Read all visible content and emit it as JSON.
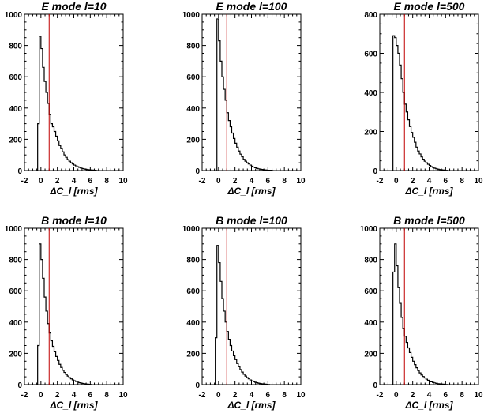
{
  "chart_data": [
    {
      "type": "histogram",
      "title": "E mode  l=10",
      "xlabel": "ΔC_l [rms]",
      "xlim": [
        -2,
        10
      ],
      "ylim": [
        0,
        1000
      ],
      "xticks": [
        "-2",
        "0",
        "2",
        "4",
        "6",
        "8",
        "10"
      ],
      "yticks": [
        "0",
        "200",
        "400",
        "600",
        "800",
        "1000"
      ],
      "marker_x": 1,
      "bin_width": 0.2,
      "bins_start": -0.4,
      "counts": [
        300,
        860,
        780,
        660,
        570,
        500,
        430,
        360,
        300,
        280,
        250,
        220,
        190,
        160,
        140,
        120,
        100,
        85,
        70,
        60,
        50,
        42,
        35,
        30,
        25,
        20,
        16,
        13,
        10,
        8,
        6,
        5,
        4,
        3,
        2,
        1
      ]
    },
    {
      "type": "histogram",
      "title": "E mode  l=100",
      "xlabel": "ΔC_l [rms]",
      "xlim": [
        -2,
        10
      ],
      "ylim": [
        0,
        1000
      ],
      "xticks": [
        "-2",
        "0",
        "2",
        "4",
        "6",
        "8",
        "10"
      ],
      "yticks": [
        "0",
        "200",
        "400",
        "600",
        "800",
        "1000"
      ],
      "marker_x": 1,
      "bin_width": 0.2,
      "bins_start": -0.2,
      "counts": [
        970,
        830,
        700,
        600,
        520,
        450,
        370,
        320,
        280,
        240,
        205,
        175,
        150,
        125,
        105,
        88,
        72,
        60,
        50,
        42,
        35,
        28,
        22,
        18,
        14,
        11,
        9,
        7,
        5,
        4,
        3,
        2,
        2,
        1
      ]
    },
    {
      "type": "histogram",
      "title": "E mode  l=500",
      "xlabel": "ΔC_l [rms]",
      "xlim": [
        -2,
        10
      ],
      "ylim": [
        0,
        800
      ],
      "xticks": [
        "-2",
        "0",
        "2",
        "4",
        "6",
        "8",
        "10"
      ],
      "yticks": [
        "0",
        "200",
        "400",
        "600",
        "800"
      ],
      "marker_x": 1,
      "bin_width": 0.2,
      "bins_start": -0.4,
      "counts": [
        690,
        680,
        640,
        600,
        540,
        470,
        400,
        340,
        300,
        260,
        225,
        195,
        170,
        145,
        120,
        100,
        85,
        70,
        58,
        48,
        40,
        32,
        26,
        20,
        16,
        12,
        9,
        7,
        5,
        4,
        3,
        2,
        1
      ]
    },
    {
      "type": "histogram",
      "title": "B mode  l=10",
      "xlabel": "ΔC_l [rms]",
      "xlim": [
        -2,
        10
      ],
      "ylim": [
        0,
        1000
      ],
      "xticks": [
        "-2",
        "0",
        "2",
        "4",
        "6",
        "8",
        "10"
      ],
      "yticks": [
        "0",
        "200",
        "400",
        "600",
        "800",
        "1000"
      ],
      "marker_x": 1,
      "bin_width": 0.2,
      "bins_start": -0.4,
      "counts": [
        250,
        900,
        800,
        680,
        560,
        470,
        390,
        330,
        280,
        245,
        210,
        180,
        155,
        130,
        110,
        92,
        78,
        65,
        55,
        45,
        37,
        30,
        25,
        20,
        16,
        12,
        10,
        8,
        6,
        4,
        3,
        2,
        1
      ]
    },
    {
      "type": "histogram",
      "title": "B mode  l=100",
      "xlabel": "ΔC_l [rms]",
      "xlim": [
        -2,
        10
      ],
      "ylim": [
        0,
        1000
      ],
      "xticks": [
        "-2",
        "0",
        "2",
        "4",
        "6",
        "8",
        "10"
      ],
      "yticks": [
        "0",
        "200",
        "400",
        "600",
        "800",
        "1000"
      ],
      "marker_x": 1,
      "bin_width": 0.2,
      "bins_start": -0.4,
      "counts": [
        300,
        890,
        780,
        660,
        550,
        470,
        400,
        340,
        290,
        250,
        215,
        185,
        160,
        135,
        115,
        96,
        80,
        66,
        55,
        45,
        37,
        30,
        24,
        19,
        15,
        12,
        9,
        7,
        5,
        4,
        3,
        2,
        1
      ]
    },
    {
      "type": "histogram",
      "title": "B mode  l=500",
      "xlabel": "ΔC_l [rms]",
      "xlim": [
        -2,
        10
      ],
      "ylim": [
        0,
        1000
      ],
      "xticks": [
        "-2",
        "0",
        "2",
        "4",
        "6",
        "8",
        "10"
      ],
      "yticks": [
        "0",
        "200",
        "400",
        "600",
        "800",
        "1000"
      ],
      "marker_x": 1,
      "bin_width": 0.2,
      "bins_start": -0.4,
      "counts": [
        720,
        900,
        760,
        620,
        520,
        430,
        360,
        310,
        270,
        235,
        205,
        175,
        150,
        128,
        108,
        90,
        75,
        62,
        52,
        43,
        35,
        28,
        22,
        18,
        14,
        11,
        8,
        6,
        5,
        4,
        3,
        2,
        1
      ]
    }
  ]
}
